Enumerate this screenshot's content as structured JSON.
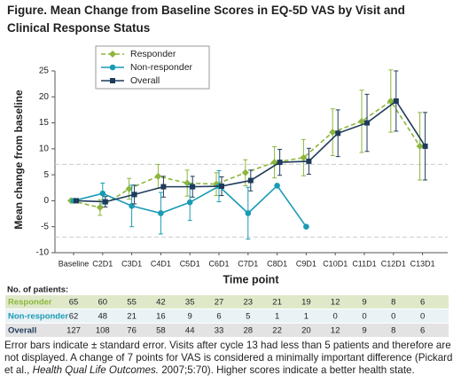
{
  "chart_data": {
    "type": "line",
    "title": "Figure. Mean Change from Baseline Scores in EQ-5D VAS by Visit and Clinical Response Status",
    "x_label": "Time point",
    "y_label": "Mean change from baseline",
    "categories": [
      "Baseline",
      "C2D1",
      "C3D1",
      "C4D1",
      "C5D1",
      "C6D1",
      "C7D1",
      "C8D1",
      "C9D1",
      "C10D1",
      "C11D1",
      "C12D1",
      "C13D1"
    ],
    "ylim": [
      -10,
      25
    ],
    "yticks": [
      -10,
      -5,
      0,
      5,
      10,
      15,
      20,
      25
    ],
    "reference_lines": [
      7,
      -7
    ],
    "legend_position": "upper left",
    "series": [
      {
        "name": "Responder",
        "color": "#8db63c",
        "dash": true,
        "marker": "diamond",
        "values": [
          0,
          -1.3,
          2.3,
          4.7,
          3.4,
          3.2,
          5.4,
          7.4,
          8.3,
          13.2,
          15.3,
          19.2,
          10.5
        ],
        "errors": [
          null,
          1.5,
          2,
          2.3,
          2.5,
          2.2,
          2.5,
          3,
          3.5,
          4.5,
          6,
          6,
          6.5
        ]
      },
      {
        "name": "Non-responder",
        "color": "#1a9bb5",
        "dash": false,
        "marker": "circle",
        "values": [
          0,
          1.4,
          -1,
          -2.4,
          -0.3,
          2.8,
          -2.4,
          2.9,
          -5,
          null,
          null,
          null,
          null
        ],
        "errors": [
          null,
          2,
          4,
          4,
          3.5,
          3,
          5,
          null,
          null,
          null,
          null,
          null,
          null
        ]
      },
      {
        "name": "Overall",
        "color": "#1f3b5a",
        "dash": false,
        "marker": "square",
        "values": [
          0,
          -0.2,
          1.2,
          2.7,
          2.7,
          2.8,
          3.9,
          7.4,
          7.6,
          13.0,
          15.0,
          19.2,
          10.5
        ],
        "errors": [
          null,
          1,
          1.8,
          2,
          2,
          1.8,
          2,
          2.5,
          2.5,
          4.5,
          5.5,
          5.8,
          6.5
        ]
      }
    ],
    "table": {
      "heading": "No. of patients:",
      "rows": [
        {
          "label": "Responder",
          "values": [
            65,
            60,
            55,
            42,
            35,
            27,
            23,
            21,
            19,
            12,
            9,
            8,
            6
          ]
        },
        {
          "label": "Non-responder",
          "values": [
            62,
            48,
            21,
            16,
            9,
            6,
            5,
            1,
            1,
            0,
            0,
            0,
            0
          ]
        },
        {
          "label": "Overall",
          "values": [
            127,
            108,
            76,
            58,
            44,
            33,
            28,
            22,
            20,
            12,
            9,
            8,
            6
          ]
        }
      ]
    },
    "footnote": [
      "Error bars indicate ± standard error. Visits after cycle 13 had less than 5 patients and therefore are not displayed. A change of 7 points for VAS is considered a minimally important difference (Pickard et al., ",
      "Health Qual Life Outcomes.",
      " 2007;5:70). Higher scores indicate a better health state."
    ]
  }
}
